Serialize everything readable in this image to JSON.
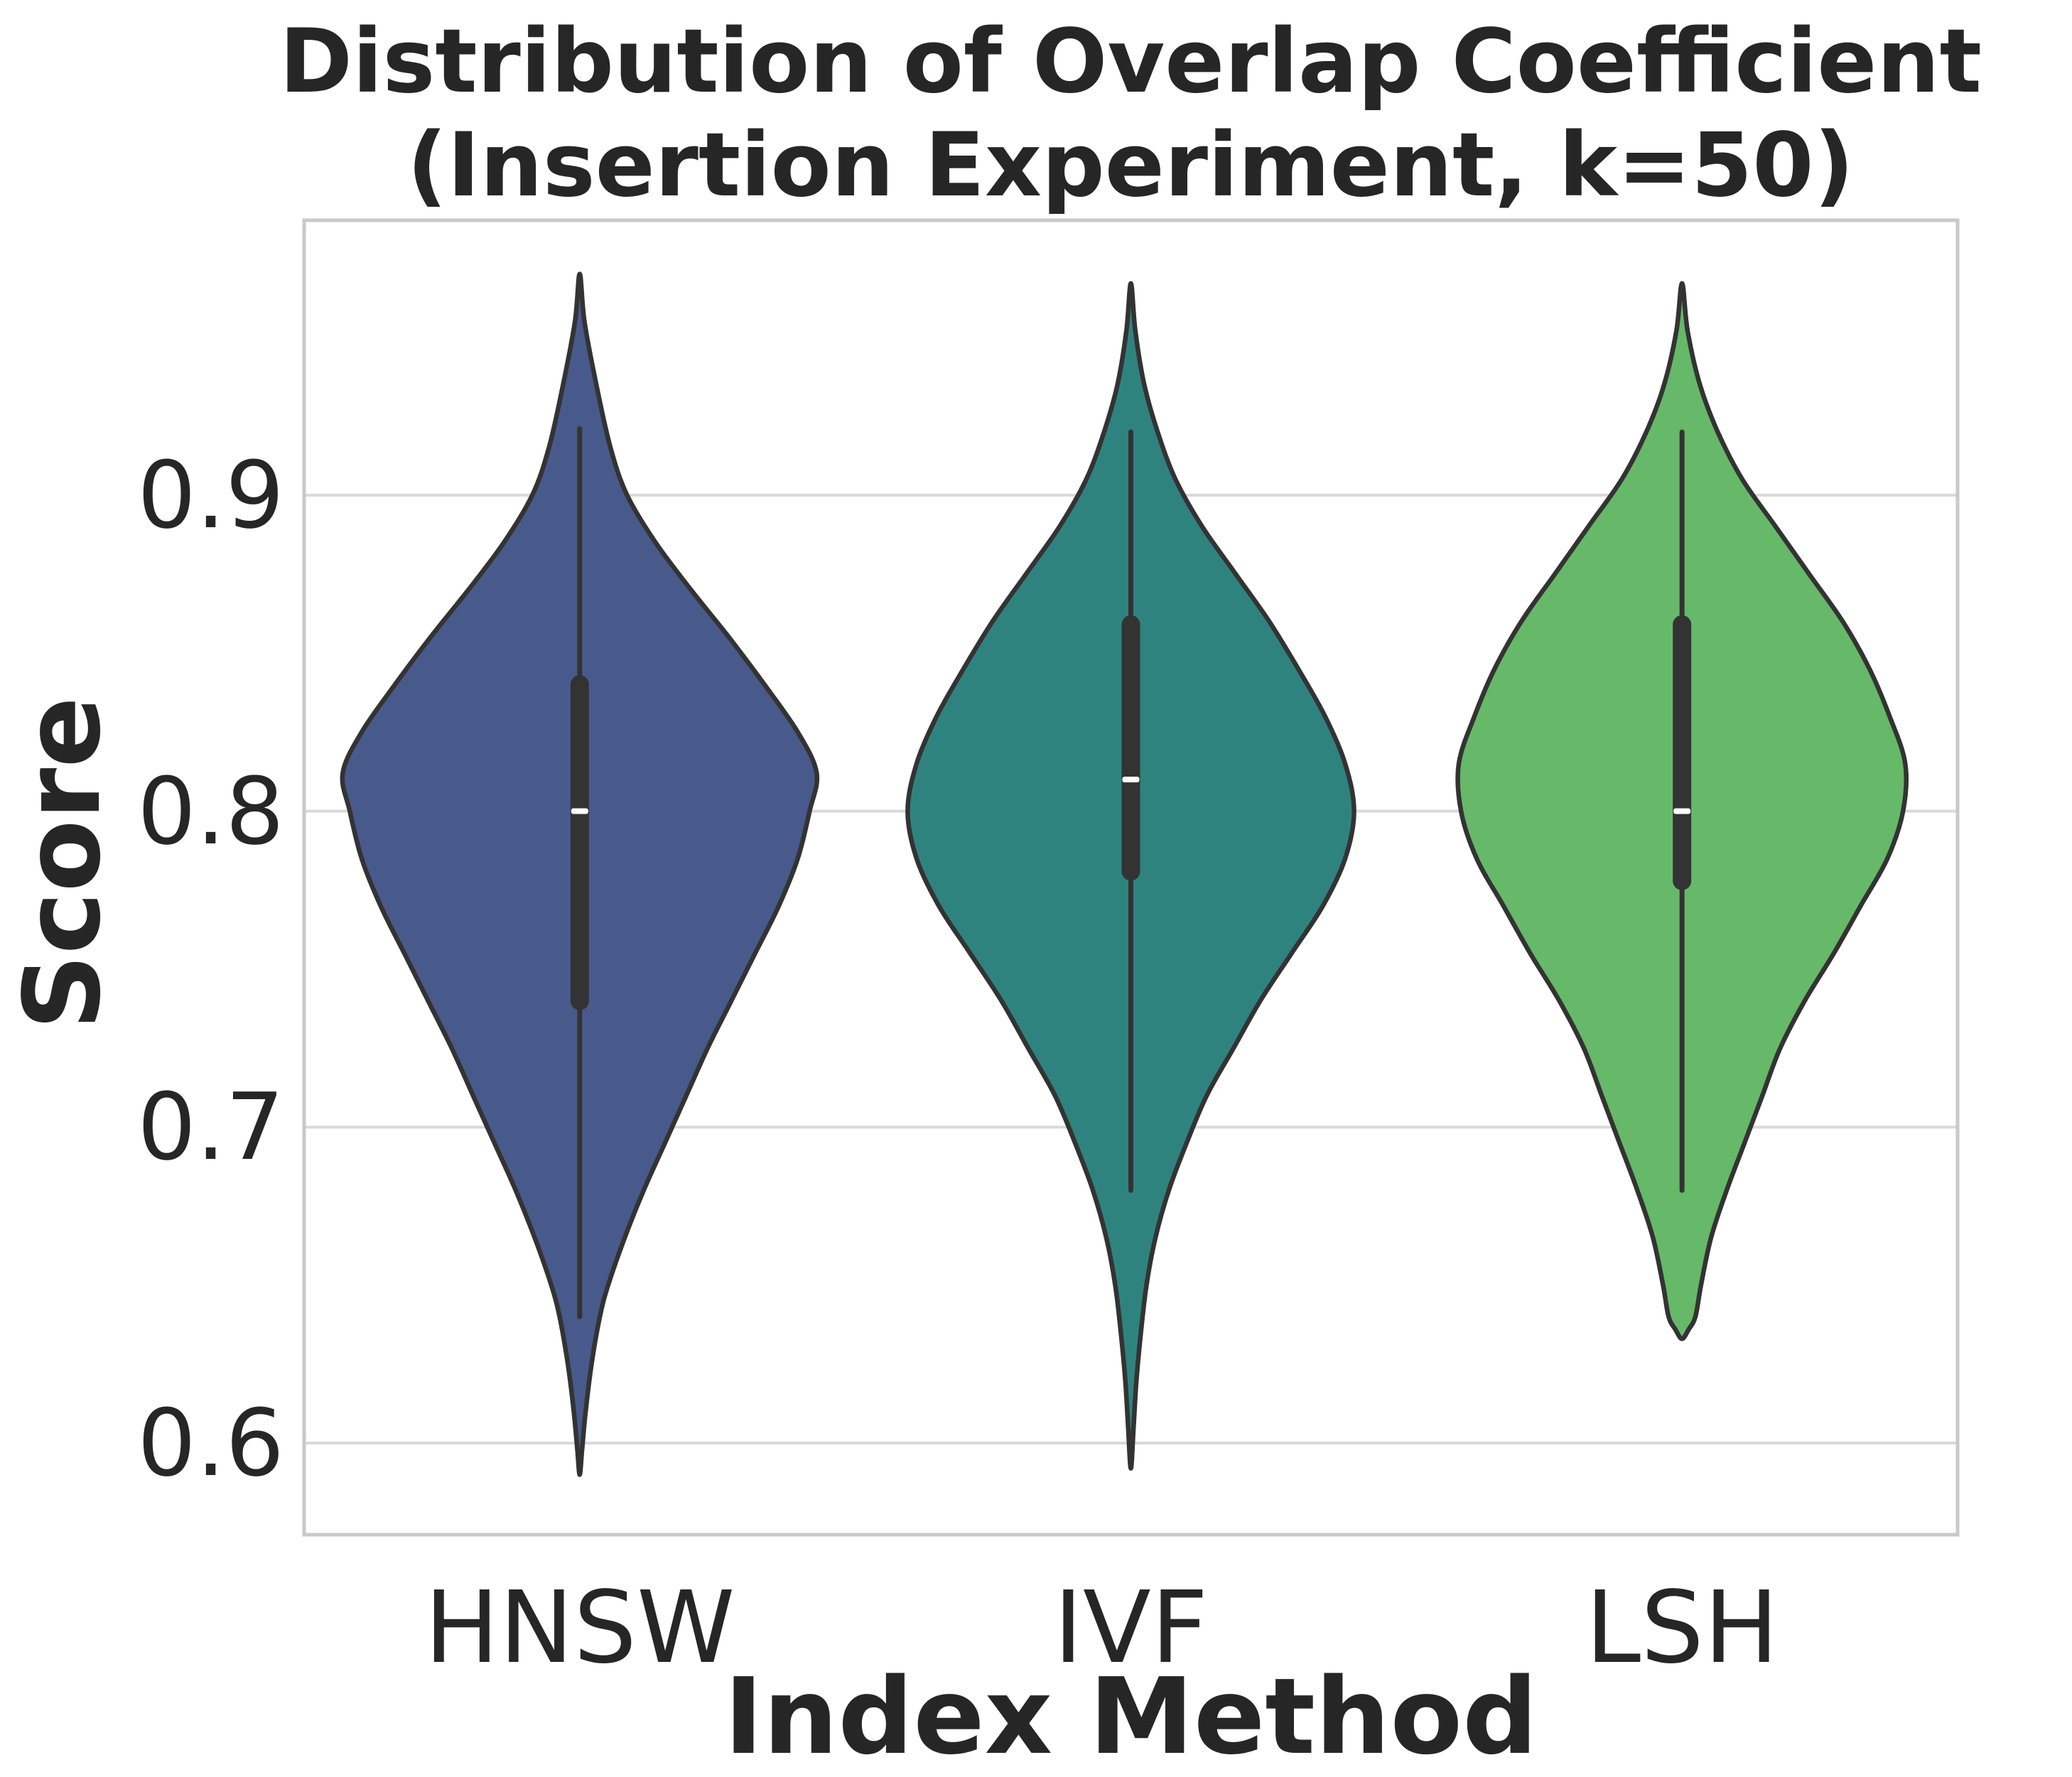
{
  "title": {
    "line1": "Distribution of Overlap Coefficient",
    "line2": "(Insertion Experiment, k=50)"
  },
  "chart_data": {
    "type": "violin",
    "title": "Distribution of Overlap Coefficient (Insertion Experiment, k=50)",
    "xlabel": "Index Method",
    "ylabel": "Score",
    "categories": [
      "HNSW",
      "IVF",
      "LSH"
    ],
    "ylim": [
      0.571,
      0.987
    ],
    "grid": "horizontal-only",
    "legend": "none",
    "y_ticks": [
      {
        "label": "0.9",
        "value": 0.9
      },
      {
        "label": "0.8",
        "value": 0.8
      },
      {
        "label": "0.7",
        "value": 0.7
      },
      {
        "label": "0.6",
        "value": 0.6
      }
    ],
    "style": {
      "grid_color": "#d9d9d9",
      "spine_color": "#c9c9c9",
      "inner_box_color": "#333333",
      "outline_color": "#333333",
      "median_color": "#ffffff",
      "text_color": "#262626",
      "background": "#ffffff"
    },
    "series": [
      {
        "name": "HNSW",
        "color": "#485a8b",
        "median": 0.8,
        "q1": 0.737,
        "q3": 0.843,
        "whisker_low": 0.64,
        "whisker_high": 0.921,
        "kde_min": 0.59,
        "kde_max": 0.97,
        "max_width_frac": 0.86,
        "density": [
          [
            0.97,
            0.0
          ],
          [
            0.955,
            0.02
          ],
          [
            0.935,
            0.07
          ],
          [
            0.915,
            0.13
          ],
          [
            0.9,
            0.2
          ],
          [
            0.885,
            0.32
          ],
          [
            0.87,
            0.47
          ],
          [
            0.855,
            0.63
          ],
          [
            0.84,
            0.78
          ],
          [
            0.825,
            0.92
          ],
          [
            0.812,
            1.0
          ],
          [
            0.8,
            0.97
          ],
          [
            0.785,
            0.92
          ],
          [
            0.77,
            0.84
          ],
          [
            0.755,
            0.74
          ],
          [
            0.74,
            0.64
          ],
          [
            0.725,
            0.54
          ],
          [
            0.71,
            0.45
          ],
          [
            0.695,
            0.36
          ],
          [
            0.68,
            0.27
          ],
          [
            0.665,
            0.19
          ],
          [
            0.65,
            0.12
          ],
          [
            0.64,
            0.085
          ],
          [
            0.625,
            0.05
          ],
          [
            0.61,
            0.025
          ],
          [
            0.598,
            0.01
          ],
          [
            0.59,
            0.0
          ]
        ]
      },
      {
        "name": "IVF",
        "color": "#2f837f",
        "median": 0.81,
        "q1": 0.778,
        "q3": 0.862,
        "whisker_low": 0.68,
        "whisker_high": 0.92,
        "kde_min": 0.592,
        "kde_max": 0.967,
        "max_width_frac": 0.81,
        "density": [
          [
            0.967,
            0.0
          ],
          [
            0.952,
            0.02
          ],
          [
            0.935,
            0.06
          ],
          [
            0.92,
            0.12
          ],
          [
            0.905,
            0.2
          ],
          [
            0.89,
            0.32
          ],
          [
            0.875,
            0.47
          ],
          [
            0.86,
            0.62
          ],
          [
            0.845,
            0.75
          ],
          [
            0.83,
            0.87
          ],
          [
            0.815,
            0.96
          ],
          [
            0.8,
            1.0
          ],
          [
            0.785,
            0.96
          ],
          [
            0.77,
            0.86
          ],
          [
            0.755,
            0.72
          ],
          [
            0.74,
            0.58
          ],
          [
            0.725,
            0.46
          ],
          [
            0.71,
            0.34
          ],
          [
            0.695,
            0.25
          ],
          [
            0.68,
            0.17
          ],
          [
            0.665,
            0.11
          ],
          [
            0.65,
            0.07
          ],
          [
            0.635,
            0.045
          ],
          [
            0.62,
            0.025
          ],
          [
            0.605,
            0.012
          ],
          [
            0.592,
            0.0
          ]
        ]
      },
      {
        "name": "LSH",
        "color": "#66b968",
        "median": 0.8,
        "q1": 0.775,
        "q3": 0.862,
        "whisker_low": 0.68,
        "whisker_high": 0.92,
        "kde_min": 0.633,
        "kde_max": 0.967,
        "max_width_frac": 0.81,
        "density": [
          [
            0.967,
            0.0
          ],
          [
            0.952,
            0.025
          ],
          [
            0.935,
            0.08
          ],
          [
            0.92,
            0.16
          ],
          [
            0.905,
            0.27
          ],
          [
            0.89,
            0.42
          ],
          [
            0.875,
            0.57
          ],
          [
            0.86,
            0.72
          ],
          [
            0.845,
            0.84
          ],
          [
            0.83,
            0.93
          ],
          [
            0.815,
            1.0
          ],
          [
            0.8,
            0.99
          ],
          [
            0.785,
            0.92
          ],
          [
            0.77,
            0.8
          ],
          [
            0.755,
            0.68
          ],
          [
            0.74,
            0.55
          ],
          [
            0.725,
            0.44
          ],
          [
            0.71,
            0.36
          ],
          [
            0.695,
            0.28
          ],
          [
            0.68,
            0.2
          ],
          [
            0.665,
            0.13
          ],
          [
            0.65,
            0.085
          ],
          [
            0.64,
            0.06
          ],
          [
            0.636,
            0.03
          ],
          [
            0.633,
            0.0
          ]
        ]
      }
    ]
  }
}
